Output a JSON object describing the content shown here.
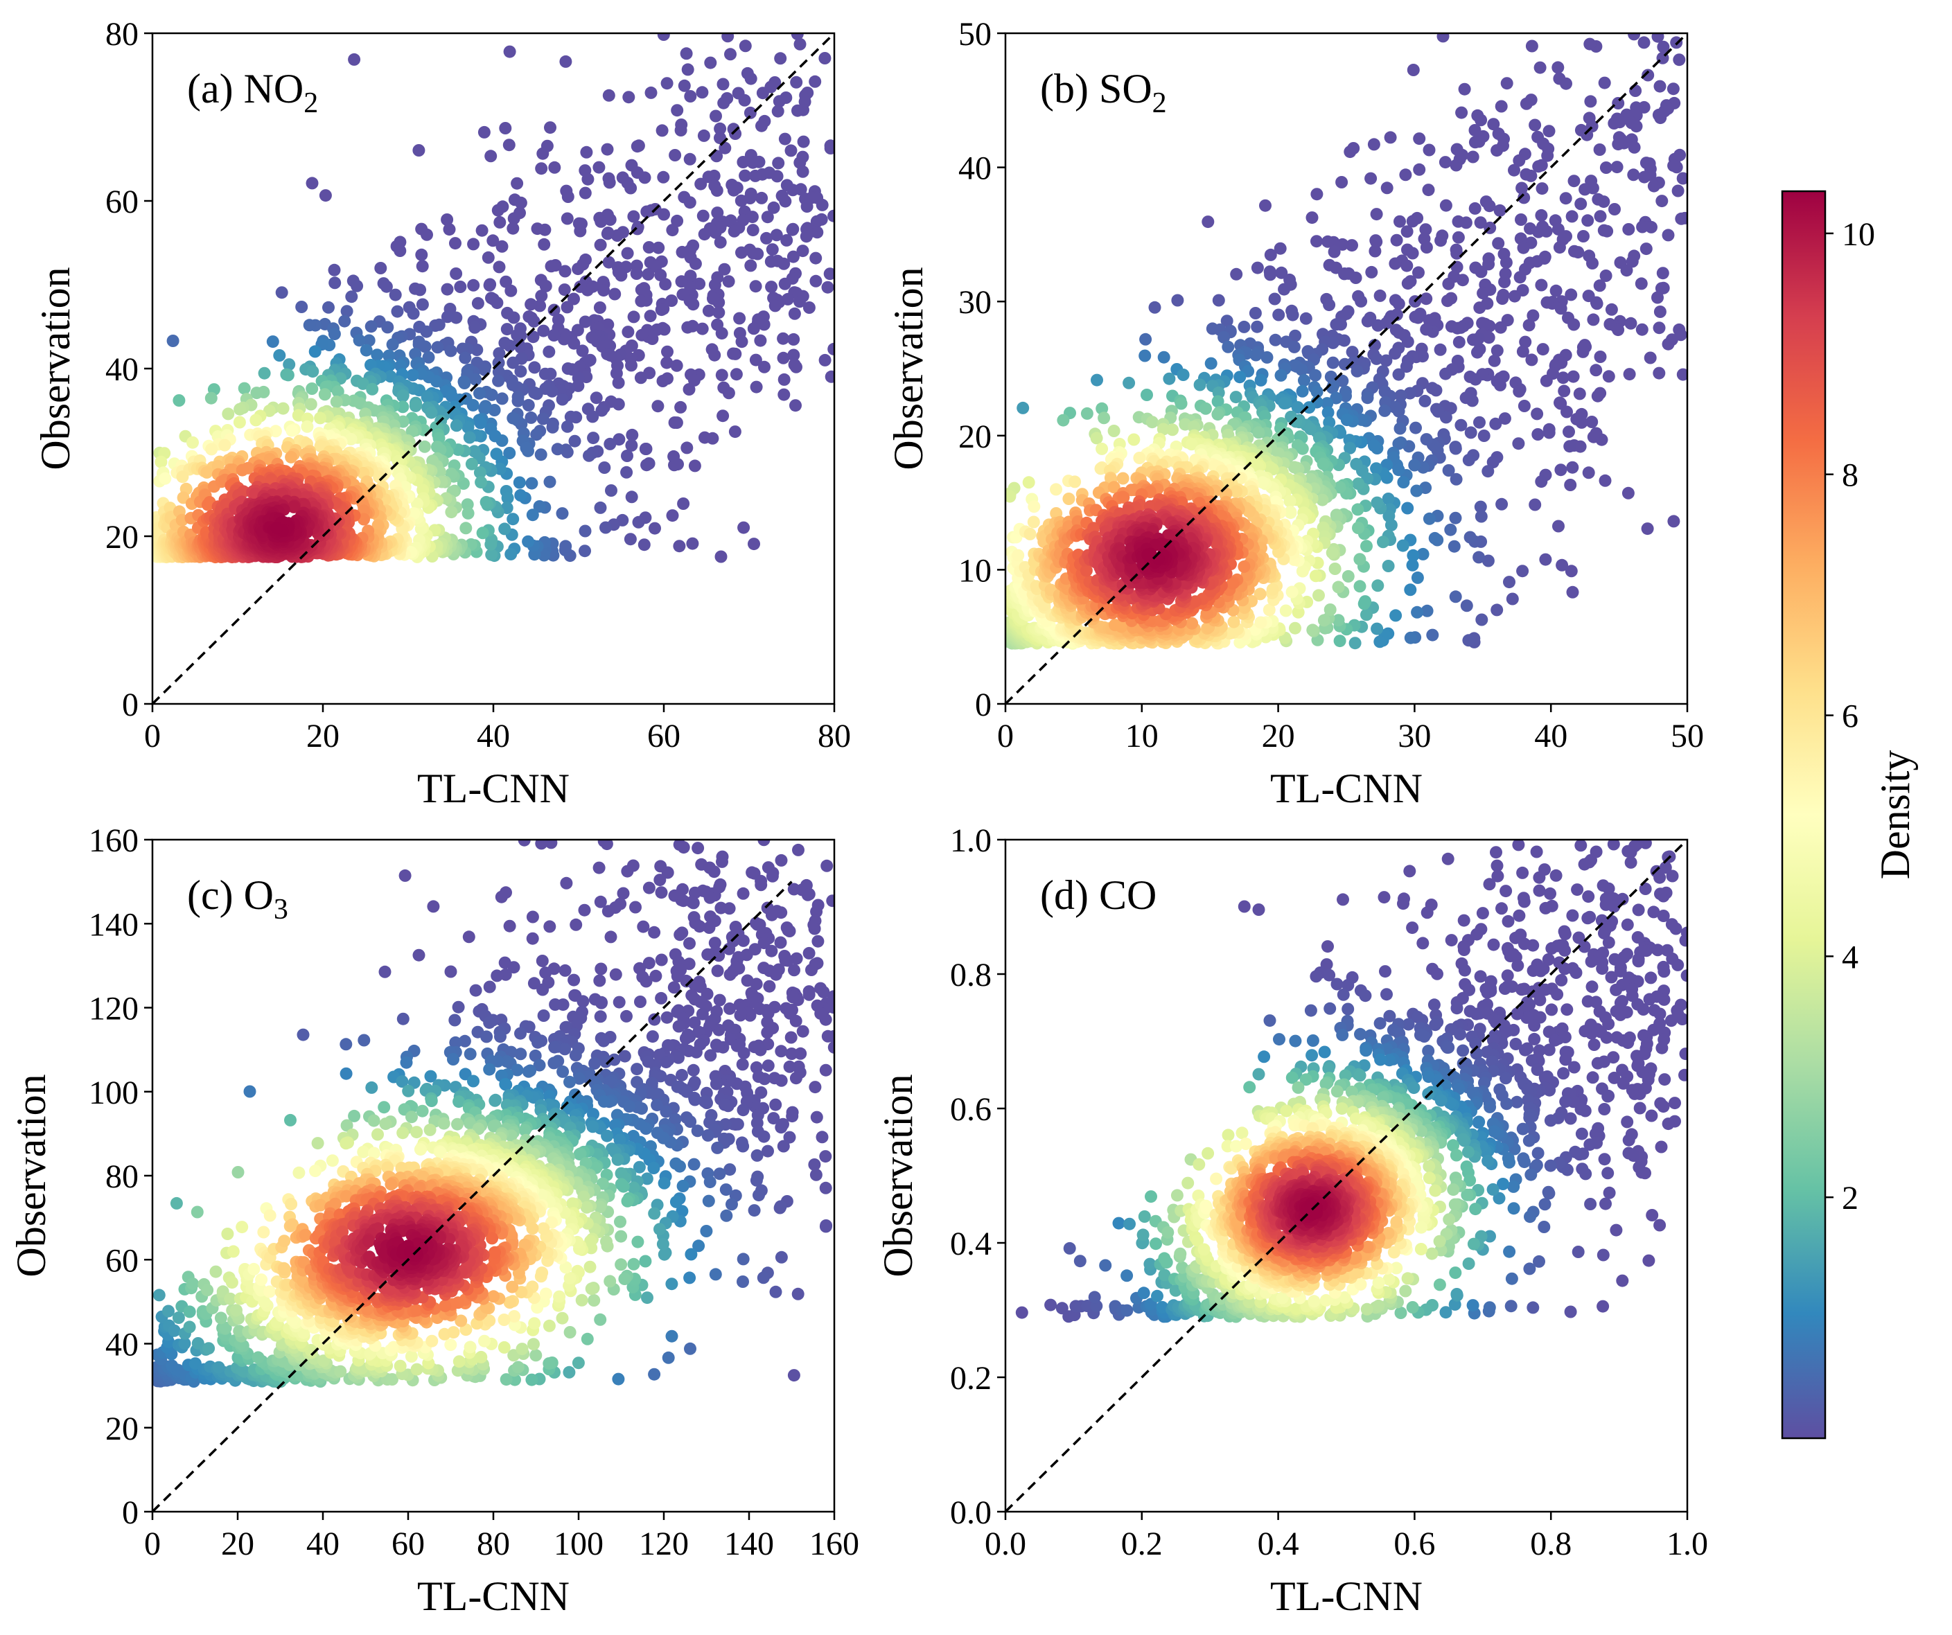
{
  "figure": {
    "colorbar": {
      "label": "Density",
      "range": [
        0,
        10.35
      ],
      "ticks": [
        2,
        4,
        6,
        8,
        10
      ],
      "colors": [
        "#5e4fa2",
        "#3288bd",
        "#66c2a5",
        "#abdda4",
        "#e6f598",
        "#ffffbf",
        "#fee08b",
        "#fdae61",
        "#f46d43",
        "#d53e4f",
        "#9e0142"
      ]
    }
  },
  "chart_data": [
    {
      "type": "scatter",
      "panel": "a",
      "label_prefix": "(a) NO",
      "label_sub": "2",
      "xlabel": "TL-CNN",
      "ylabel": "Observation",
      "xlim": [
        0,
        80
      ],
      "ylim": [
        0,
        80
      ],
      "xticks": [
        "0",
        "20",
        "40",
        "60",
        "80"
      ],
      "yticks": [
        "0",
        "20",
        "40",
        "60",
        "80"
      ],
      "reference_line": {
        "x": [
          0,
          80
        ],
        "y": [
          0,
          80
        ],
        "style": "dashed"
      },
      "points": {
        "cluster_center": [
          15,
          21
        ],
        "floor_y": 17.5,
        "count": 2600,
        "spread_x": 12,
        "spread_y": 9,
        "max_density": 10.35
      }
    },
    {
      "type": "scatter",
      "panel": "b",
      "label_prefix": "(b) SO",
      "label_sub": "2",
      "xlabel": "TL-CNN",
      "ylabel": "Observation",
      "xlim": [
        0,
        50
      ],
      "ylim": [
        0,
        50
      ],
      "xticks": [
        "0",
        "10",
        "20",
        "30",
        "40",
        "50"
      ],
      "yticks": [
        "0",
        "10",
        "20",
        "30",
        "40",
        "50"
      ],
      "reference_line": {
        "x": [
          0,
          50
        ],
        "y": [
          0,
          50
        ],
        "style": "dashed"
      },
      "points": {
        "cluster_center": [
          11,
          11
        ],
        "floor_y": 4.5,
        "count": 2600,
        "spread_x": 8,
        "spread_y": 6,
        "max_density": 10.35
      }
    },
    {
      "type": "scatter",
      "panel": "c",
      "label_prefix": "(c) O",
      "label_sub": "3",
      "xlabel": "TL-CNN",
      "ylabel": "Observation",
      "xlim": [
        0,
        160
      ],
      "ylim": [
        0,
        160
      ],
      "xticks": [
        "0",
        "20",
        "40",
        "60",
        "80",
        "100",
        "120",
        "140",
        "160"
      ],
      "yticks": [
        "0",
        "20",
        "40",
        "60",
        "80",
        "100",
        "120",
        "140",
        "160"
      ],
      "reference_line": {
        "x": [
          0,
          150
        ],
        "y": [
          0,
          150
        ],
        "style": "dashed"
      },
      "points": {
        "cluster_center": [
          60,
          62
        ],
        "floor_y": 31,
        "count": 2800,
        "spread_x": 28,
        "spread_y": 18,
        "max_density": 10.35
      }
    },
    {
      "type": "scatter",
      "panel": "d",
      "label_prefix": "(d) CO",
      "label_sub": "",
      "xlabel": "TL-CNN",
      "ylabel": "Observation",
      "xlim": [
        0.0,
        1.0
      ],
      "ylim": [
        0.0,
        1.0
      ],
      "xticks": [
        "0.0",
        "0.2",
        "0.4",
        "0.6",
        "0.8",
        "1.0"
      ],
      "yticks": [
        "0.0",
        "0.2",
        "0.4",
        "0.6",
        "0.8",
        "1.0"
      ],
      "reference_line": {
        "x": [
          0.0,
          1.0
        ],
        "y": [
          0.0,
          1.0
        ],
        "style": "dashed"
      },
      "points": {
        "cluster_center": [
          0.45,
          0.45
        ],
        "floor_y": 0.29,
        "count": 2400,
        "spread_x": 0.12,
        "spread_y": 0.1,
        "max_density": 10.35
      }
    }
  ]
}
